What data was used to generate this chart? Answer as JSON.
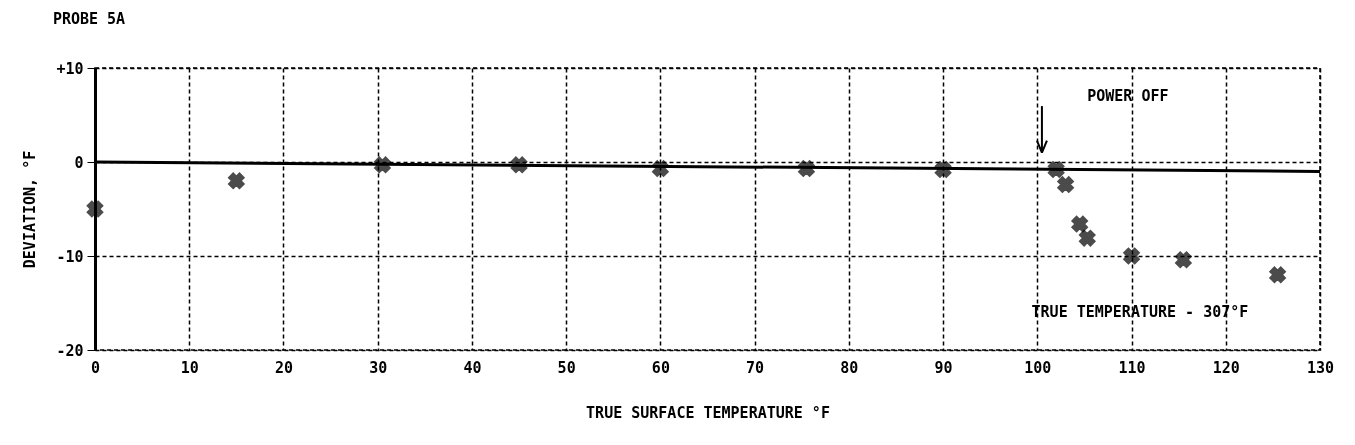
{
  "chart_data": {
    "type": "scatter",
    "title": "PROBE 5A",
    "xlabel": "TRUE SURFACE TEMPERATURE °F",
    "ylabel": "DEVIATION, °F",
    "xlim": [
      0,
      130
    ],
    "xticks": [
      0,
      10,
      20,
      30,
      40,
      50,
      60,
      70,
      80,
      90,
      100,
      110,
      120,
      130
    ],
    "ylim": [
      -20,
      10
    ],
    "yticks": [
      {
        "value": 10,
        "label": "+10"
      },
      0,
      -10,
      -20
    ],
    "grid": true,
    "marker": "cross",
    "series": [
      {
        "type": "line",
        "marker": "none",
        "color": "#000000",
        "x": [
          0,
          130
        ],
        "values": [
          0,
          -1
        ]
      },
      {
        "color": "#000000",
        "x": [
          0,
          15,
          30.5,
          45,
          60,
          75.5,
          90,
          102,
          103,
          104.5,
          105.3,
          110,
          115.5,
          125.5
        ],
        "values": [
          -5,
          -2,
          -0.3,
          -0.3,
          -0.7,
          -0.7,
          -0.8,
          -0.8,
          -2.4,
          -6.6,
          -8.1,
          -10,
          -10.4,
          -12
        ]
      }
    ],
    "annotations": [
      "POWER OFF",
      "TRUE TEMPERATURE - 307°F"
    ]
  }
}
